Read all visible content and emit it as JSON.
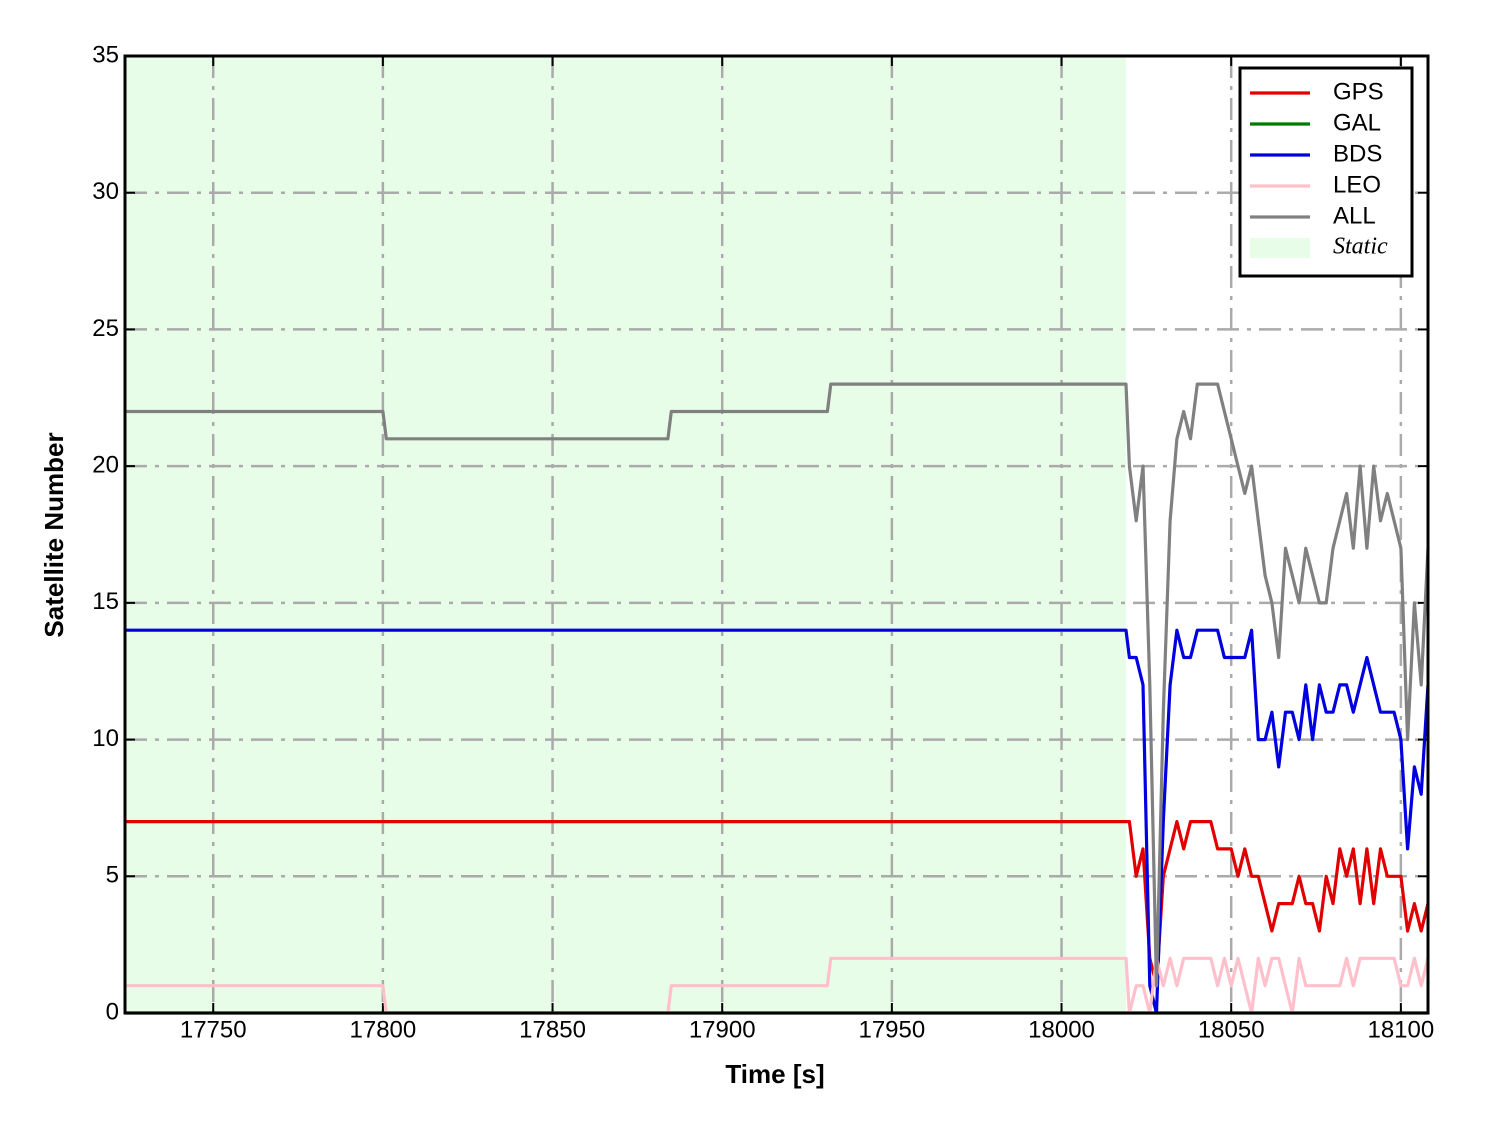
{
  "chart_data": {
    "type": "line",
    "x_label": "Time [s]",
    "y_label": "Satellite Number",
    "x": [
      17724,
      17800,
      17801,
      17884,
      17885,
      17931,
      17932,
      18019,
      18020,
      18022,
      18024,
      18026,
      18028,
      18030,
      18032,
      18034,
      18036,
      18038,
      18040,
      18042,
      18044,
      18046,
      18048,
      18050,
      18052,
      18054,
      18056,
      18058,
      18060,
      18062,
      18064,
      18066,
      18068,
      18070,
      18072,
      18074,
      18076,
      18078,
      18080,
      18082,
      18084,
      18086,
      18088,
      18090,
      18092,
      18094,
      18096,
      18098,
      18100,
      18102,
      18104,
      18106,
      18108
    ],
    "series": [
      {
        "name": "GPS",
        "color": "#e00000",
        "values": [
          7,
          7,
          7,
          7,
          7,
          7,
          7,
          7,
          7,
          5,
          6,
          2,
          1,
          5,
          6,
          7,
          6,
          7,
          7,
          7,
          7,
          6,
          6,
          6,
          5,
          6,
          5,
          5,
          4,
          3,
          4,
          4,
          4,
          5,
          4,
          4,
          3,
          5,
          4,
          6,
          5,
          6,
          4,
          6,
          4,
          6,
          5,
          5,
          5,
          3,
          4,
          3,
          4
        ]
      },
      {
        "name": "GAL",
        "color": "#007a00",
        "values": [
          0,
          0,
          0,
          0,
          0,
          0,
          0,
          0,
          0,
          0,
          0,
          0,
          0,
          0,
          0,
          0,
          0,
          0,
          0,
          0,
          0,
          0,
          0,
          0,
          0,
          0,
          0,
          0,
          0,
          0,
          0,
          0,
          0,
          0,
          0,
          0,
          0,
          0,
          0,
          0,
          0,
          0,
          0,
          0,
          0,
          0,
          0,
          0,
          0,
          0,
          0,
          0,
          0
        ]
      },
      {
        "name": "BDS",
        "color": "#0000e0",
        "values": [
          14,
          14,
          14,
          14,
          14,
          14,
          14,
          14,
          13,
          13,
          12,
          1,
          0,
          7,
          12,
          14,
          13,
          13,
          14,
          14,
          14,
          14,
          13,
          13,
          13,
          13,
          14,
          10,
          10,
          11,
          9,
          11,
          11,
          10,
          12,
          10,
          12,
          11,
          11,
          12,
          12,
          11,
          12,
          13,
          12,
          11,
          11,
          11,
          10,
          6,
          9,
          8,
          12
        ]
      },
      {
        "name": "LEO",
        "color": "#ffc0cb",
        "values": [
          1,
          1,
          0,
          0,
          1,
          1,
          2,
          2,
          0,
          1,
          1,
          0,
          2,
          1,
          2,
          1,
          2,
          2,
          2,
          2,
          2,
          1,
          2,
          1,
          2,
          1,
          0,
          2,
          1,
          2,
          2,
          1,
          0,
          2,
          1,
          1,
          1,
          1,
          1,
          1,
          2,
          1,
          2,
          2,
          2,
          2,
          2,
          2,
          1,
          1,
          2,
          1,
          2
        ]
      },
      {
        "name": "ALL",
        "color": "#808080",
        "values": [
          22,
          22,
          21,
          21,
          22,
          22,
          23,
          23,
          20,
          18,
          20,
          12,
          1,
          11,
          18,
          21,
          22,
          21,
          23,
          23,
          23,
          23,
          22,
          21,
          20,
          19,
          20,
          18,
          16,
          15,
          13,
          17,
          16,
          15,
          17,
          16,
          15,
          15,
          17,
          18,
          19,
          17,
          20,
          17,
          20,
          18,
          19,
          18,
          17,
          10,
          15,
          12,
          17
        ]
      }
    ],
    "static": {
      "label": "Static",
      "x": [
        17724,
        18019
      ],
      "color": "#e8fde8"
    },
    "xlim": [
      17724,
      18108
    ],
    "ylim": [
      0,
      35
    ],
    "xticks": [
      17750,
      17800,
      17850,
      17900,
      17950,
      18000,
      18050,
      18100
    ],
    "yticks": [
      0,
      5,
      10,
      15,
      20,
      25,
      30,
      35
    ],
    "grid": true,
    "legend": "upper right"
  }
}
